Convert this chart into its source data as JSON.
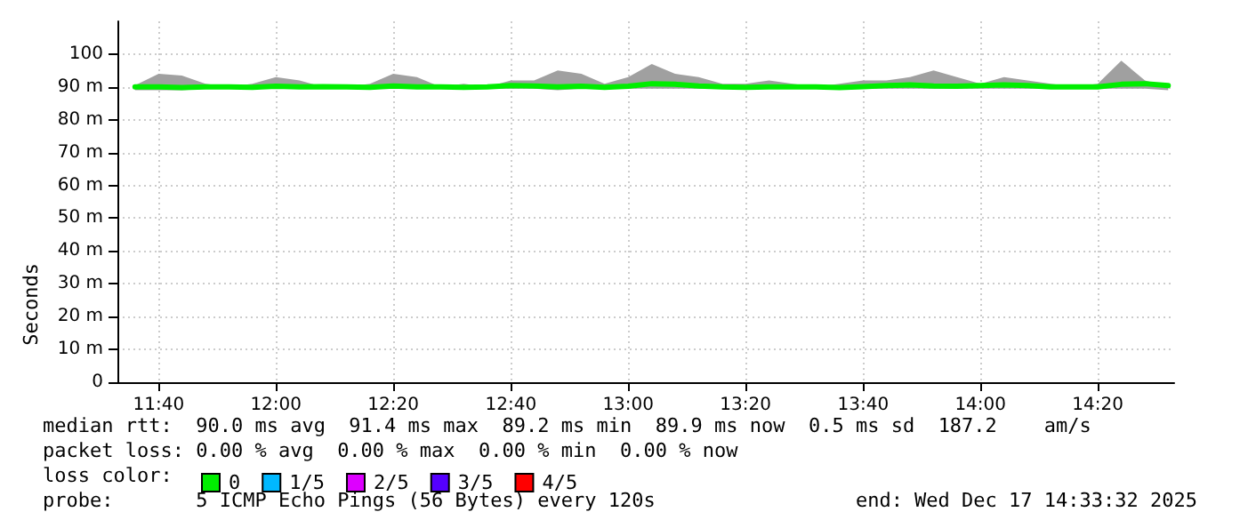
{
  "chart_data": {
    "type": "line",
    "ylabel": "Seconds",
    "legend_title": "loss color:",
    "legend": "bottom left",
    "grid": true,
    "marker": "none",
    "xlim": [
      11.55,
      14.55
    ],
    "ylim": [
      0,
      110
    ],
    "xticks": [
      {
        "value": 11.667,
        "label": "11:40"
      },
      {
        "value": 12,
        "label": "12:00"
      },
      {
        "value": 12.333,
        "label": "12:20"
      },
      {
        "value": 12.667,
        "label": "12:40"
      },
      {
        "value": 13,
        "label": "13:00"
      },
      {
        "value": 13.333,
        "label": "13:20"
      },
      {
        "value": 13.667,
        "label": "13:40"
      },
      {
        "value": 14,
        "label": "14:00"
      },
      {
        "value": 14.333,
        "label": "14:20"
      }
    ],
    "yticks": [
      0,
      {
        "value": 10,
        "label": "10 m"
      },
      {
        "value": 20,
        "label": "20 m"
      },
      {
        "value": 30,
        "label": "30 m"
      },
      {
        "value": 40,
        "label": "40 m"
      },
      {
        "value": 50,
        "label": "50 m"
      },
      {
        "value": 60,
        "label": "60 m"
      },
      {
        "value": 70,
        "label": "70 m"
      },
      {
        "value": 80,
        "label": "80 m"
      },
      {
        "value": 90,
        "label": "90 m"
      },
      {
        "value": 100,
        "label": "100"
      }
    ],
    "x": [
      11.6,
      11.667,
      11.733,
      11.8,
      11.867,
      11.933,
      12,
      12.067,
      12.133,
      12.2,
      12.267,
      12.333,
      12.4,
      12.467,
      12.533,
      12.6,
      12.667,
      12.733,
      12.8,
      12.867,
      12.933,
      13,
      13.067,
      13.133,
      13.2,
      13.267,
      13.333,
      13.4,
      13.467,
      13.533,
      13.6,
      13.667,
      13.733,
      13.8,
      13.867,
      13.933,
      14,
      14.067,
      14.133,
      14.2,
      14.267,
      14.333,
      14.4,
      14.467,
      14.533
    ],
    "series": [
      {
        "name": "0",
        "color": "#00ee00",
        "values": [
          90,
          90,
          89.8,
          90,
          90,
          89.9,
          90.2,
          90,
          90.1,
          90,
          89.9,
          90.3,
          90,
          90,
          89.9,
          90,
          90.4,
          90.3,
          90,
          90.2,
          89.9,
          90.2,
          91,
          90.8,
          90.3,
          90,
          89.9,
          90,
          90,
          90,
          89.8,
          90.1,
          90.4,
          90.6,
          90.3,
          90.2,
          90.4,
          90.6,
          90.4,
          90,
          90,
          90,
          90.8,
          91,
          90.4
        ],
        "lower": [
          89,
          89,
          89,
          89.5,
          89.5,
          89.5,
          89.5,
          89.5,
          89.5,
          89.5,
          89.5,
          89.5,
          89.5,
          89.5,
          89.5,
          89.5,
          89.5,
          89.5,
          89,
          89.5,
          89.5,
          89.5,
          89.5,
          89.5,
          89.5,
          89.5,
          89.5,
          89.5,
          89.5,
          89.5,
          89.5,
          89.5,
          89.5,
          89.5,
          89.5,
          89.5,
          89.5,
          89.5,
          89.5,
          89.5,
          89.5,
          89.5,
          89.5,
          89.5,
          89
        ],
        "upper": [
          90.5,
          94,
          93.5,
          91,
          90,
          91,
          93,
          92,
          90,
          90,
          91,
          94,
          93,
          90,
          91,
          90,
          92,
          92,
          95,
          94,
          91,
          93,
          97,
          94,
          93,
          91,
          91,
          92,
          91,
          90,
          91,
          92,
          92,
          93,
          95,
          93,
          91,
          93,
          92,
          91,
          90,
          91,
          98,
          92,
          90
        ]
      },
      {
        "name": "1/5",
        "color": "#00b8ff",
        "values": [
          null,
          null,
          null,
          null,
          null,
          null,
          null,
          null,
          null,
          null,
          null,
          null,
          null,
          null,
          null,
          null,
          null,
          null,
          null,
          null,
          null,
          null,
          null,
          null,
          null,
          null,
          null,
          null,
          null,
          null,
          null,
          null,
          null,
          null,
          null,
          null,
          null,
          null,
          null,
          null,
          null,
          null,
          null,
          null,
          null
        ]
      },
      {
        "name": "2/5",
        "color": "#dd00ff",
        "values": [
          null,
          null,
          null,
          null,
          null,
          null,
          null,
          null,
          null,
          null,
          null,
          null,
          null,
          null,
          null,
          null,
          null,
          null,
          null,
          null,
          null,
          null,
          null,
          null,
          null,
          null,
          null,
          null,
          null,
          null,
          null,
          null,
          null,
          null,
          null,
          null,
          null,
          null,
          null,
          null,
          null,
          null,
          null,
          null,
          null
        ]
      },
      {
        "name": "3/5",
        "color": "#5500ff",
        "values": [
          null,
          null,
          null,
          null,
          null,
          null,
          null,
          null,
          null,
          null,
          null,
          null,
          null,
          null,
          null,
          null,
          null,
          null,
          null,
          null,
          null,
          null,
          null,
          null,
          null,
          null,
          null,
          null,
          null,
          null,
          null,
          null,
          null,
          null,
          null,
          null,
          null,
          null,
          null,
          null,
          null,
          null,
          null,
          null,
          null
        ]
      },
      {
        "name": "4/5",
        "color": "#ff0000",
        "values": [
          null,
          null,
          null,
          null,
          null,
          null,
          null,
          null,
          null,
          null,
          null,
          null,
          null,
          null,
          null,
          null,
          null,
          null,
          null,
          null,
          null,
          null,
          null,
          null,
          null,
          null,
          null,
          null,
          null,
          null,
          null,
          null,
          null,
          null,
          null,
          null,
          null,
          null,
          null,
          null,
          null,
          null,
          null,
          null,
          null
        ]
      }
    ],
    "annotations": [
      "median rtt:  90.0 ms avg  91.4 ms max  89.2 ms min  89.9 ms now  0.5 ms sd  187.2    am/s",
      "packet loss: 0.00 % avg  0.00 % max  0.00 % min  0.00 % now",
      "probe:       5 ICMP Echo Pings (56 Bytes) every 120s",
      "end: Wed Dec 17 14:33:32 2025"
    ]
  }
}
